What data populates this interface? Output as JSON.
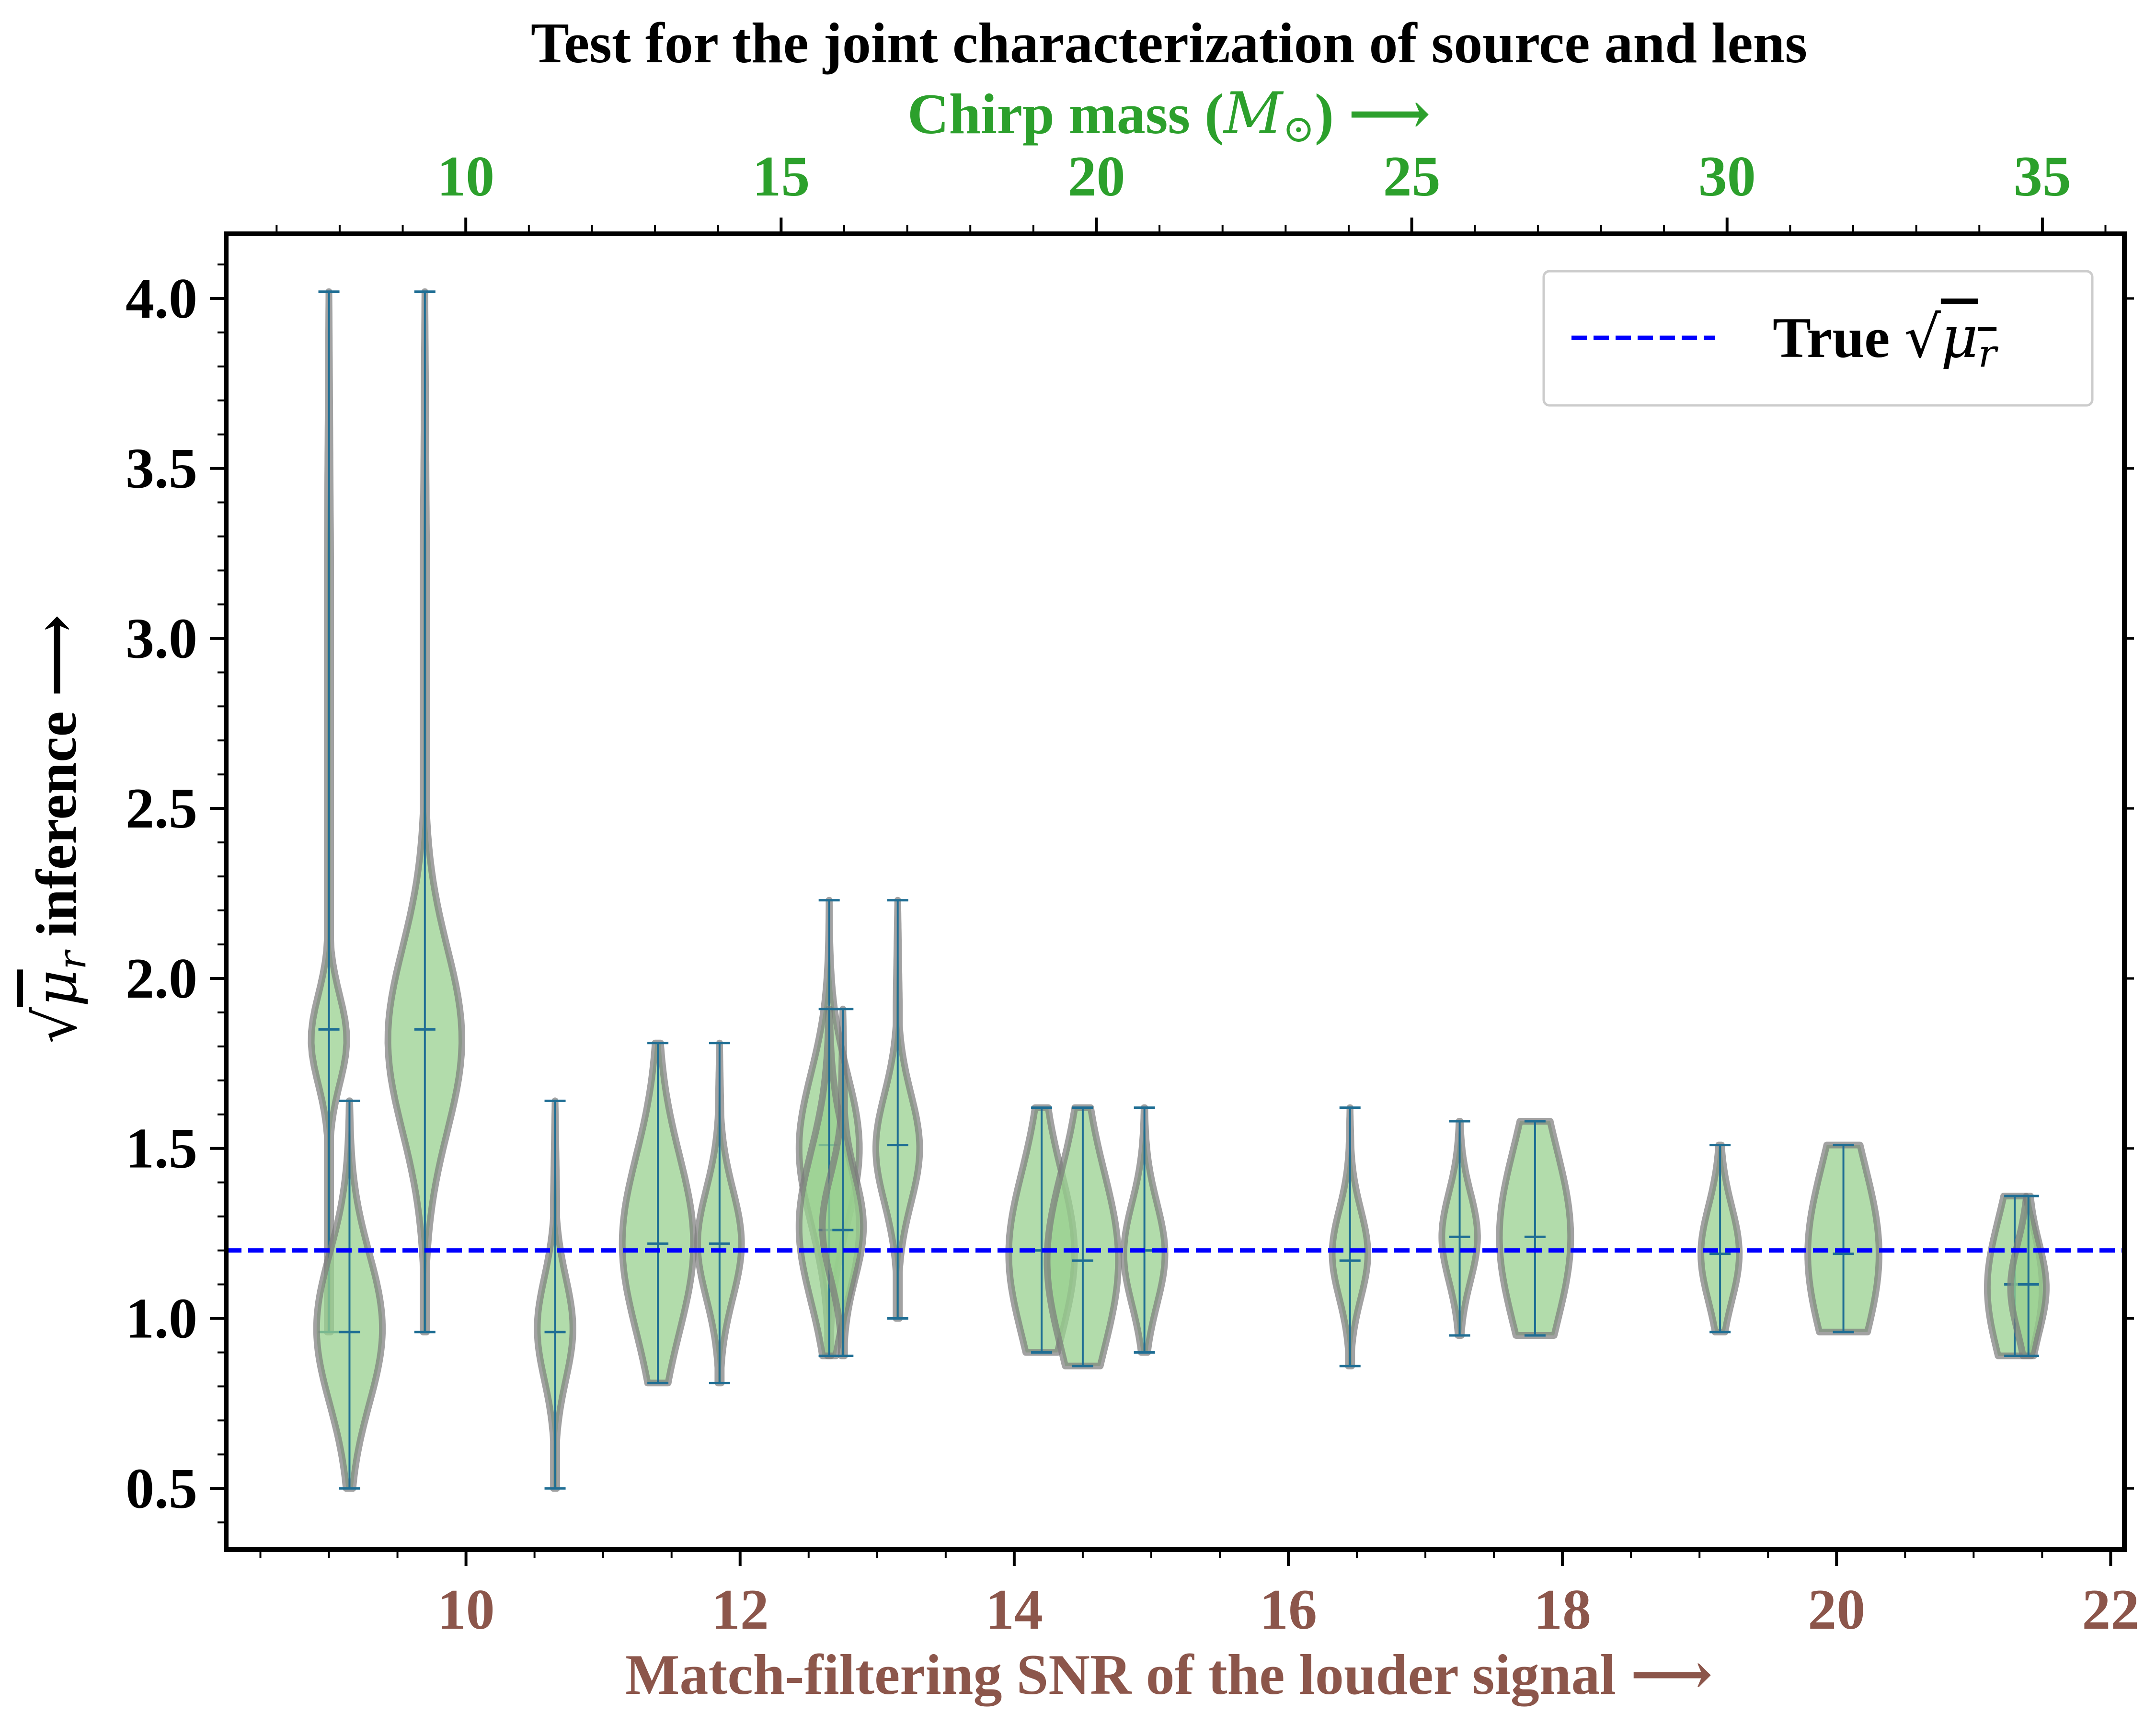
{
  "chart_data": {
    "type": "violin",
    "title": "Test for the joint characterization of source and lens",
    "x_axis": {
      "label": "Match-filtering SNR of the louder signal  ⟶",
      "range": [
        8.25,
        22.1
      ],
      "ticks": [
        10,
        12,
        14,
        16,
        18,
        20,
        22
      ],
      "tick_labels": [
        "10",
        "12",
        "14",
        "16",
        "18",
        "20",
        "22"
      ],
      "minor_step": 0.5,
      "color": "#8c564b"
    },
    "top_axis": {
      "label": "Chirp mass (",
      "label_math": "M",
      "label_sub": "⊙",
      "label_tail": ")  ⟶",
      "range": [
        6.2,
        36.3
      ],
      "ticks": [
        10,
        15,
        20,
        25,
        30,
        35
      ],
      "tick_labels": [
        "10",
        "15",
        "20",
        "25",
        "30",
        "35"
      ],
      "minor_step": 1,
      "color": "#2ca02c"
    },
    "y_axis": {
      "label_tail": " inference  ⟶",
      "range": [
        0.32,
        4.19
      ],
      "ticks": [
        0.5,
        1.0,
        1.5,
        2.0,
        2.5,
        3.0,
        3.5,
        4.0
      ],
      "tick_labels": [
        "0.5",
        "1.0",
        "1.5",
        "2.0",
        "2.5",
        "3.0",
        "3.5",
        "4.0"
      ],
      "minor_step": 0.1
    },
    "reference_line": {
      "y": 1.2,
      "label": "True ",
      "color": "#0000ff",
      "style": "dashed"
    },
    "legend_position": "upper right",
    "grid": false,
    "colors": {
      "violin_fill": "#98d08f",
      "violin_edge": "#7a7a7a",
      "whisker": "#1f6e94"
    },
    "violins": [
      {
        "x": 9.0,
        "min": 0.96,
        "max": 4.02,
        "mean": 1.85,
        "spread": 0.13,
        "peak_y": 1.82,
        "peak_w": 0.13
      },
      {
        "x": 9.15,
        "min": 0.5,
        "max": 1.64,
        "mean": 0.96,
        "spread": 0.22,
        "peak_y": 0.97,
        "peak_w": 0.24
      },
      {
        "x": 9.7,
        "min": 0.96,
        "max": 4.02,
        "mean": 1.85,
        "spread": 0.27,
        "peak_y": 1.82,
        "peak_w": 0.27
      },
      {
        "x": 10.65,
        "min": 0.5,
        "max": 1.64,
        "mean": 0.96,
        "spread": 0.15,
        "peak_y": 0.97,
        "peak_w": 0.13
      },
      {
        "x": 11.4,
        "min": 0.81,
        "max": 1.81,
        "mean": 1.22,
        "spread": 0.26,
        "peak_y": 1.22,
        "peak_w": 0.26
      },
      {
        "x": 11.85,
        "min": 0.81,
        "max": 1.81,
        "mean": 1.22,
        "spread": 0.16,
        "peak_y": 1.22,
        "peak_w": 0.16
      },
      {
        "x": 12.65,
        "min": 0.89,
        "max": 2.23,
        "mean": 1.51,
        "spread": 0.22,
        "peak_y": 1.5,
        "peak_w": 0.22
      },
      {
        "x": 12.65,
        "min": 0.89,
        "max": 1.91,
        "mean": 1.26,
        "spread": 0.22,
        "peak_y": 1.27,
        "peak_w": 0.22
      },
      {
        "x": 12.75,
        "min": 0.89,
        "max": 1.91,
        "mean": 1.26,
        "spread": 0.15,
        "peak_y": 1.27,
        "peak_w": 0.15
      },
      {
        "x": 13.15,
        "min": 1.0,
        "max": 2.23,
        "mean": 1.51,
        "spread": 0.16,
        "peak_y": 1.5,
        "peak_w": 0.16
      },
      {
        "x": 14.2,
        "min": 0.9,
        "max": 1.62,
        "mean": 1.2,
        "spread": 0.24,
        "peak_y": 1.19,
        "peak_w": 0.24
      },
      {
        "x": 14.5,
        "min": 0.86,
        "max": 1.62,
        "mean": 1.17,
        "spread": 0.26,
        "peak_y": 1.17,
        "peak_w": 0.26
      },
      {
        "x": 14.95,
        "min": 0.9,
        "max": 1.62,
        "mean": 1.2,
        "spread": 0.15,
        "peak_y": 1.19,
        "peak_w": 0.15
      },
      {
        "x": 16.45,
        "min": 0.86,
        "max": 1.62,
        "mean": 1.17,
        "spread": 0.13,
        "peak_y": 1.19,
        "peak_w": 0.13
      },
      {
        "x": 17.25,
        "min": 0.95,
        "max": 1.58,
        "mean": 1.24,
        "spread": 0.13,
        "peak_y": 1.24,
        "peak_w": 0.13
      },
      {
        "x": 17.8,
        "min": 0.95,
        "max": 1.58,
        "mean": 1.24,
        "spread": 0.26,
        "peak_y": 1.24,
        "peak_w": 0.26
      },
      {
        "x": 19.15,
        "min": 0.96,
        "max": 1.51,
        "mean": 1.19,
        "spread": 0.14,
        "peak_y": 1.19,
        "peak_w": 0.14
      },
      {
        "x": 20.05,
        "min": 0.96,
        "max": 1.51,
        "mean": 1.19,
        "spread": 0.26,
        "peak_y": 1.19,
        "peak_w": 0.26
      },
      {
        "x": 21.3,
        "min": 0.89,
        "max": 1.36,
        "mean": 1.1,
        "spread": 0.2,
        "peak_y": 1.09,
        "peak_w": 0.2
      },
      {
        "x": 21.4,
        "min": 0.89,
        "max": 1.36,
        "mean": 1.1,
        "spread": 0.13,
        "peak_y": 1.09,
        "peak_w": 0.13
      }
    ]
  }
}
